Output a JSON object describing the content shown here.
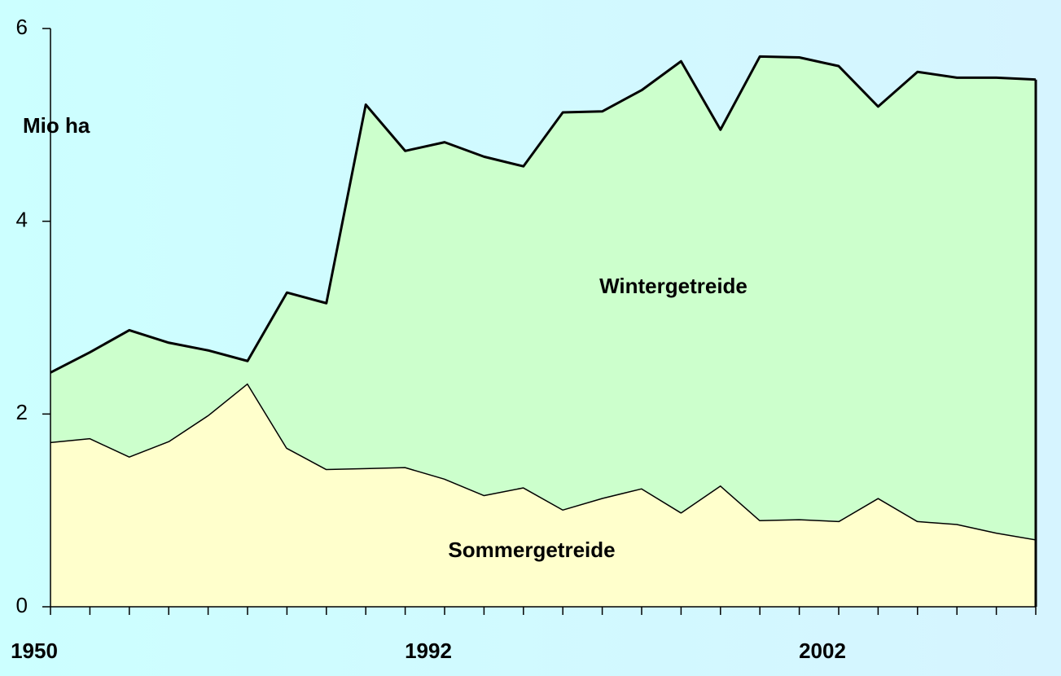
{
  "chart_data": {
    "type": "stacked-area",
    "y_label": "Mio ha",
    "categories": [
      "1950",
      null,
      null,
      null,
      null,
      null,
      null,
      null,
      null,
      null,
      "1992",
      null,
      null,
      null,
      null,
      null,
      null,
      null,
      null,
      null,
      "2002",
      null,
      null,
      null,
      null,
      null
    ],
    "series": [
      {
        "name": "Sommergetreide",
        "color": "#ffffcc",
        "values": [
          1.71,
          1.75,
          1.56,
          1.72,
          1.99,
          2.32,
          1.65,
          1.43,
          1.44,
          1.45,
          1.33,
          1.16,
          1.24,
          1.01,
          1.13,
          1.23,
          0.98,
          1.26,
          0.9,
          0.91,
          0.89,
          1.13,
          0.89,
          0.86,
          0.77,
          0.7
        ]
      },
      {
        "name": "Wintergetreide",
        "color": "#ccffcc",
        "values": [
          0.72,
          0.89,
          1.31,
          1.02,
          0.67,
          0.23,
          1.61,
          1.72,
          3.77,
          3.28,
          3.49,
          3.51,
          3.33,
          4.12,
          4.01,
          4.13,
          4.68,
          3.69,
          4.81,
          4.79,
          4.72,
          4.06,
          4.66,
          4.63,
          4.72,
          4.77
        ]
      }
    ],
    "ylim": [
      0,
      6
    ],
    "yticks": [
      0,
      2,
      4,
      6
    ]
  }
}
